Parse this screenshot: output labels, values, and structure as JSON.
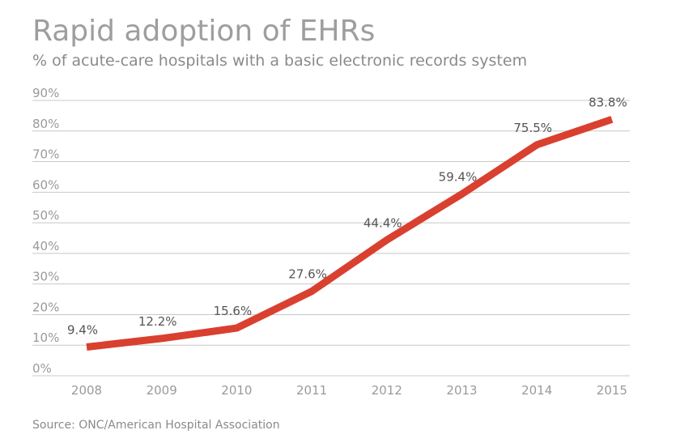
{
  "chart_data": {
    "type": "line",
    "title": "Rapid adoption of EHRs",
    "subtitle": "% of acute-care hospitals with a basic electronic records system",
    "source": "Source: ONC/American Hospital Association",
    "categories": [
      "2008",
      "2009",
      "2010",
      "2011",
      "2012",
      "2013",
      "2014",
      "2015"
    ],
    "series": [
      {
        "values": [
          9.4,
          12.2,
          15.6,
          27.6,
          44.4,
          59.4,
          75.5,
          83.8
        ],
        "labels": [
          "9.4%",
          "12.2%",
          "15.6%",
          "27.6%",
          "44.4%",
          "59.4%",
          "75.5%",
          "83.8%"
        ]
      }
    ],
    "ylim": [
      0,
      90
    ],
    "yticks": [
      0,
      10,
      20,
      30,
      40,
      50,
      60,
      70,
      80,
      90
    ],
    "ytick_labels": [
      "0%",
      "10%",
      "20%",
      "30%",
      "40%",
      "50%",
      "60%",
      "70%",
      "80%",
      "90%"
    ],
    "grid": true,
    "line_color": "#d9402f",
    "grid_color": "#c8c8c8",
    "xlabel": "",
    "ylabel": ""
  }
}
